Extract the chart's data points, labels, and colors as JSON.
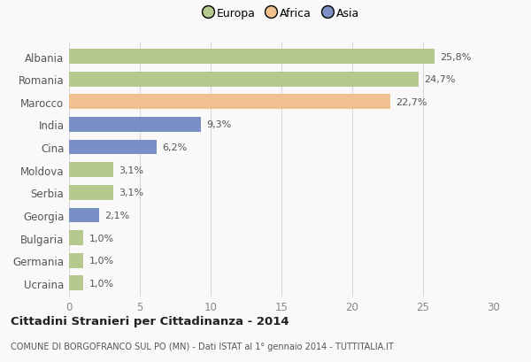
{
  "categories": [
    "Albania",
    "Romania",
    "Marocco",
    "India",
    "Cina",
    "Moldova",
    "Serbia",
    "Georgia",
    "Bulgaria",
    "Germania",
    "Ucraina"
  ],
  "values": [
    25.8,
    24.7,
    22.7,
    9.3,
    6.2,
    3.1,
    3.1,
    2.1,
    1.0,
    1.0,
    1.0
  ],
  "labels": [
    "25,8%",
    "24,7%",
    "22,7%",
    "9,3%",
    "6,2%",
    "3,1%",
    "3,1%",
    "2,1%",
    "1,0%",
    "1,0%",
    "1,0%"
  ],
  "colors": [
    "#b5c98e",
    "#b5c98e",
    "#f0c090",
    "#7b8fc7",
    "#7b8fc7",
    "#b5c98e",
    "#b5c98e",
    "#7b8fc7",
    "#b5c98e",
    "#b5c98e",
    "#b5c98e"
  ],
  "legend_labels": [
    "Europa",
    "Africa",
    "Asia"
  ],
  "legend_colors": [
    "#b5c98e",
    "#f0c090",
    "#7b8fc7"
  ],
  "xlim": [
    0,
    30
  ],
  "xticks": [
    0,
    5,
    10,
    15,
    20,
    25,
    30
  ],
  "title": "Cittadini Stranieri per Cittadinanza - 2014",
  "subtitle": "COMUNE DI BORGOFRANCO SUL PO (MN) - Dati ISTAT al 1° gennaio 2014 - TUTTITALIA.IT",
  "bg_color": "#f9f9f9",
  "grid_color": "#d8d8d8",
  "bar_height": 0.65
}
